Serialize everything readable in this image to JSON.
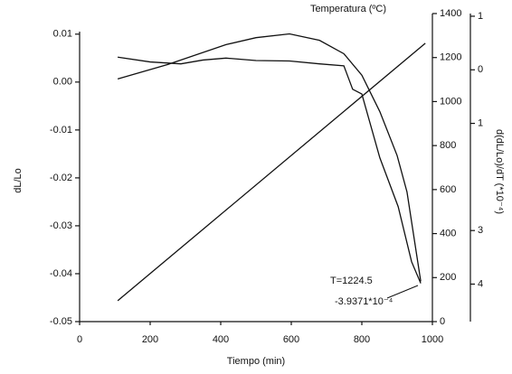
{
  "chart_data": {
    "type": "line",
    "xlabel": "Tiempo (min)",
    "ylabel": "dL/Lo",
    "y2label": "Temperatura (ºC)",
    "y3label": "d(dL/Lo)/dT (*10⁻⁴)",
    "annotations": [
      "T=1224.5",
      "-3.9371*10⁻⁴"
    ],
    "xlim": [
      0,
      1000
    ],
    "xticks": [
      0,
      200,
      400,
      600,
      800,
      1000
    ],
    "ylim": [
      -0.05,
      0.0143
    ],
    "yticks": [
      {
        "value": 0.01,
        "label": "0.01"
      },
      {
        "value": 0,
        "label": "0.00"
      },
      -0.01,
      -0.02,
      -0.03,
      -0.04,
      -0.05
    ],
    "y2lim": [
      0,
      1400
    ],
    "y2ticks": [
      0,
      200,
      400,
      600,
      800,
      1000,
      1200,
      1400
    ],
    "y3lim": [
      -4.7,
      1.05
    ],
    "y3ticks": [
      1,
      0,
      {
        "value": -1,
        "label": "1"
      },
      {
        "value": -3,
        "label": "3"
      },
      {
        "value": -4,
        "label": "4"
      }
    ],
    "series": [
      {
        "name": "dL/Lo",
        "color": "#111",
        "axis": "y",
        "x": [
          108,
          200,
          287,
          350,
          415,
          500,
          595,
          680,
          749,
          774,
          800,
          851,
          903,
          941,
          967
        ],
        "values": [
          0.0052,
          0.0042,
          0.0038,
          0.0046,
          0.005,
          0.0045,
          0.0044,
          0.0038,
          0.0034,
          -0.0015,
          -0.0025,
          -0.0158,
          -0.026,
          -0.0375,
          -0.042
        ]
      },
      {
        "name": "Temperatura",
        "color": "#111",
        "axis": "y2",
        "x": [
          108,
          980
        ],
        "values": [
          95,
          1265
        ]
      },
      {
        "name": "d(dL/Lo)/dT",
        "color": "#111",
        "axis": "y3",
        "x": [
          108,
          250,
          415,
          500,
          595,
          680,
          749,
          800,
          851,
          900,
          928,
          967
        ],
        "values": [
          -0.17,
          0.1,
          0.47,
          0.6,
          0.67,
          0.55,
          0.3,
          -0.1,
          -0.78,
          -1.6,
          -2.28,
          -3.95
        ]
      }
    ]
  }
}
